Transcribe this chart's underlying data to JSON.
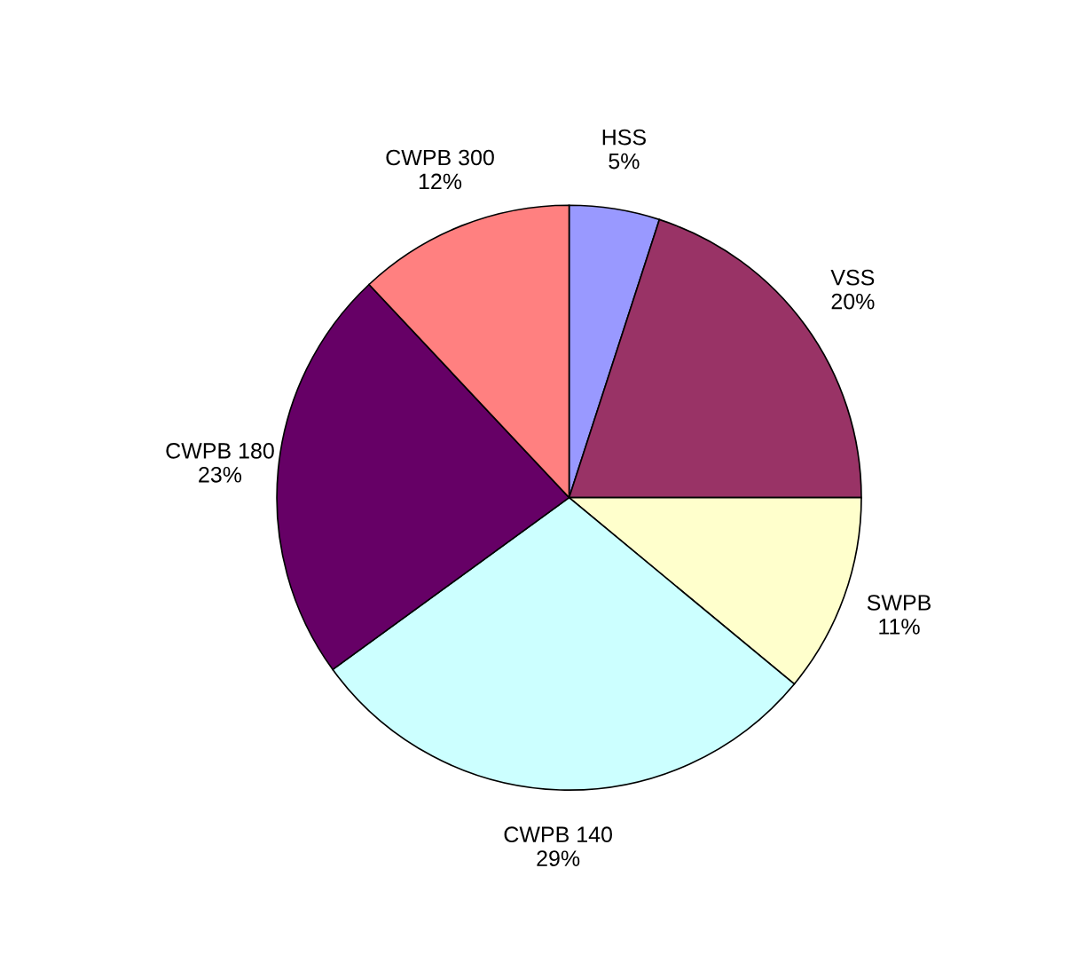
{
  "chart_data": {
    "type": "pie",
    "categories": [
      "HSS",
      "VSS",
      "SWPB",
      "CWPB 140",
      "CWPB 180",
      "CWPB 300"
    ],
    "values": [
      5,
      20,
      11,
      29,
      23,
      12
    ],
    "value_labels": [
      "5%",
      "20%",
      "11%",
      "29%",
      "23%",
      "12%"
    ],
    "colors": [
      "#9999ff",
      "#993366",
      "#ffffcc",
      "#ccffff",
      "#660066",
      "#ff8080"
    ],
    "legend": false
  }
}
